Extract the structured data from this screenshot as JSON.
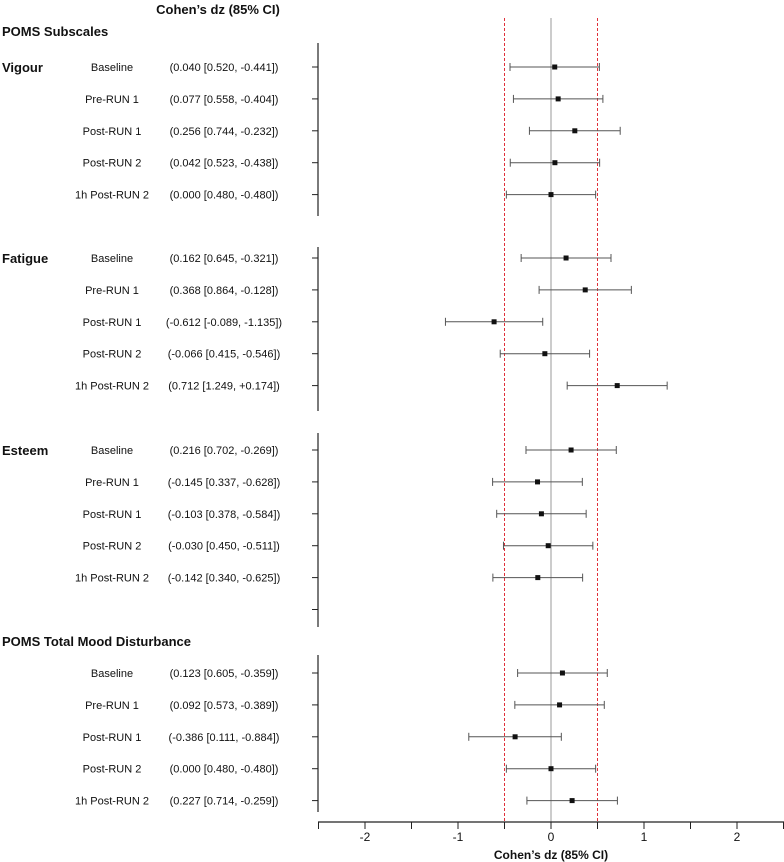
{
  "chart_data": {
    "type": "forest",
    "top_title": "Cohen’s dz (85% CI)",
    "xlabel": "Cohen’s dz  (85% CI)",
    "xlim": [
      -2.5,
      2.5
    ],
    "xticks": [
      -2,
      -1,
      0,
      1,
      2
    ],
    "reference_lines": [
      -0.5,
      0,
      0.5
    ],
    "sections": [
      {
        "title": "POMS Subscales",
        "groups": [
          {
            "name": "Vigour",
            "rows": [
              {
                "label": "Baseline",
                "text": "(0.040 [0.520, -0.441])",
                "est": 0.04,
                "upper": 0.52,
                "lower": -0.441
              },
              {
                "label": "Pre-RUN 1",
                "text": "(0.077 [0.558, -0.404])",
                "est": 0.077,
                "upper": 0.558,
                "lower": -0.404
              },
              {
                "label": "Post-RUN 1",
                "text": "(0.256 [0.744, -0.232])",
                "est": 0.256,
                "upper": 0.744,
                "lower": -0.232
              },
              {
                "label": "Post-RUN 2",
                "text": "(0.042 [0.523, -0.438])",
                "est": 0.042,
                "upper": 0.523,
                "lower": -0.438
              },
              {
                "label": "1h Post-RUN 2",
                "text": "(0.000 [0.480, -0.480])",
                "est": 0.0,
                "upper": 0.48,
                "lower": -0.48
              }
            ]
          },
          {
            "name": "Fatigue",
            "rows": [
              {
                "label": "Baseline",
                "text": "(0.162 [0.645, -0.321])",
                "est": 0.162,
                "upper": 0.645,
                "lower": -0.321
              },
              {
                "label": "Pre-RUN 1",
                "text": "(0.368 [0.864, -0.128])",
                "est": 0.368,
                "upper": 0.864,
                "lower": -0.128
              },
              {
                "label": "Post-RUN 1",
                "text": "(-0.612 [-0.089, -1.135])",
                "est": -0.612,
                "upper": -0.089,
                "lower": -1.135
              },
              {
                "label": "Post-RUN 2",
                "text": "(-0.066 [0.415, -0.546])",
                "est": -0.066,
                "upper": 0.415,
                "lower": -0.546
              },
              {
                "label": "1h Post-RUN 2",
                "text": "(0.712 [1.249, +0.174])",
                "est": 0.712,
                "upper": 1.249,
                "lower": 0.174
              }
            ]
          },
          {
            "name": "Esteem",
            "rows": [
              {
                "label": "Baseline",
                "text": "(0.216 [0.702, -0.269])",
                "est": 0.216,
                "upper": 0.702,
                "lower": -0.269
              },
              {
                "label": "Pre-RUN 1",
                "text": "(-0.145 [0.337, -0.628])",
                "est": -0.145,
                "upper": 0.337,
                "lower": -0.628
              },
              {
                "label": "Post-RUN 1",
                "text": "(-0.103 [0.378, -0.584])",
                "est": -0.103,
                "upper": 0.378,
                "lower": -0.584
              },
              {
                "label": "Post-RUN 2",
                "text": "(-0.030 [0.450, -0.511])",
                "est": -0.03,
                "upper": 0.45,
                "lower": -0.511
              },
              {
                "label": "1h Post-RUN 2",
                "text": "(-0.142 [0.340, -0.625])",
                "est": -0.142,
                "upper": 0.34,
                "lower": -0.625
              }
            ]
          }
        ]
      },
      {
        "title": "POMS Total Mood Disturbance",
        "groups": [
          {
            "name": "",
            "rows": [
              {
                "label": "Baseline",
                "text": "(0.123 [0.605, -0.359])",
                "est": 0.123,
                "upper": 0.605,
                "lower": -0.359
              },
              {
                "label": "Pre-RUN 1",
                "text": "(0.092 [0.573, -0.389])",
                "est": 0.092,
                "upper": 0.573,
                "lower": -0.389
              },
              {
                "label": "Post-RUN 1",
                "text": "(-0.386 [0.111, -0.884])",
                "est": -0.386,
                "upper": 0.111,
                "lower": -0.884
              },
              {
                "label": "Post-RUN 2",
                "text": "(0.000 [0.480, -0.480])",
                "est": 0.0,
                "upper": 0.48,
                "lower": -0.48
              },
              {
                "label": "1h Post-RUN 2",
                "text": "(0.227 [0.714, -0.259])",
                "est": 0.227,
                "upper": 0.714,
                "lower": -0.259
              }
            ]
          }
        ]
      }
    ],
    "colors": {
      "reference_dashed": "#e0303a",
      "zero_line": "#9a9a9a",
      "marker": "#111111",
      "axis": "#222222"
    }
  }
}
